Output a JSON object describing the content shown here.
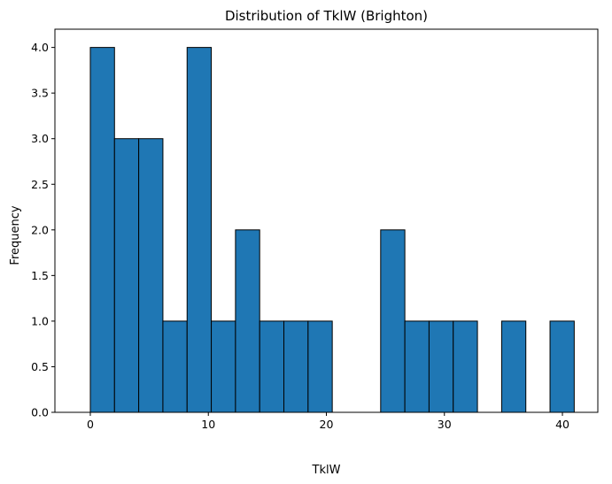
{
  "chart_data": {
    "type": "bar",
    "title": "Distribution of TklW (Brighton)",
    "xlabel": "TklW",
    "ylabel": "Frequency",
    "bins": [
      {
        "start": 0.0,
        "end": 2.05,
        "count": 4
      },
      {
        "start": 2.05,
        "end": 4.1,
        "count": 3
      },
      {
        "start": 4.1,
        "end": 6.15,
        "count": 3
      },
      {
        "start": 6.15,
        "end": 8.2,
        "count": 1
      },
      {
        "start": 8.2,
        "end": 10.25,
        "count": 4
      },
      {
        "start": 10.25,
        "end": 12.3,
        "count": 1
      },
      {
        "start": 12.3,
        "end": 14.35,
        "count": 2
      },
      {
        "start": 14.35,
        "end": 16.4,
        "count": 1
      },
      {
        "start": 16.4,
        "end": 18.45,
        "count": 1
      },
      {
        "start": 18.45,
        "end": 20.5,
        "count": 1
      },
      {
        "start": 20.5,
        "end": 22.55,
        "count": 0
      },
      {
        "start": 22.55,
        "end": 24.6,
        "count": 0
      },
      {
        "start": 24.6,
        "end": 26.65,
        "count": 2
      },
      {
        "start": 26.65,
        "end": 28.7,
        "count": 1
      },
      {
        "start": 28.7,
        "end": 30.75,
        "count": 1
      },
      {
        "start": 30.75,
        "end": 32.8,
        "count": 1
      },
      {
        "start": 32.8,
        "end": 34.85,
        "count": 0
      },
      {
        "start": 34.85,
        "end": 36.9,
        "count": 1
      },
      {
        "start": 36.9,
        "end": 38.95,
        "count": 0
      },
      {
        "start": 38.95,
        "end": 41.0,
        "count": 1
      }
    ],
    "xlim": [
      -3.0,
      43.0
    ],
    "ylim": [
      0,
      4.2
    ],
    "xticks": [
      0,
      10,
      20,
      30,
      40
    ],
    "xtick_labels": [
      "0",
      "10",
      "20",
      "30",
      "40"
    ],
    "yticks": [
      0,
      0.5,
      1.0,
      1.5,
      2.0,
      2.5,
      3.0,
      3.5,
      4.0
    ],
    "ytick_labels": [
      "0.0",
      "0.5",
      "1.0",
      "1.5",
      "2.0",
      "2.5",
      "3.0",
      "3.5",
      "4.0"
    ],
    "grid": false,
    "colors": {
      "bar_fill": "#1f77b4",
      "bar_edge": "#000000",
      "axes": "#000000",
      "background": "#ffffff"
    }
  }
}
